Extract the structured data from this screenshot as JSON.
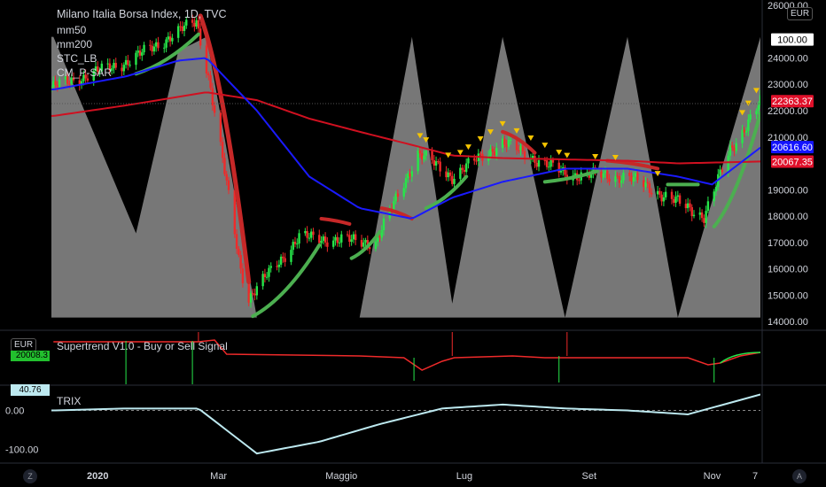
{
  "header": {
    "title": "Milano Italia Borsa Index, 1D, TVC",
    "indicators": [
      "mm50",
      "mm200",
      "STC_LB",
      "CM_P-SAR"
    ],
    "currency": "EUR"
  },
  "panels": {
    "supertrend": {
      "label": "Supertrend V1.0 - Buy or Sell Signal",
      "currency": "EUR",
      "value_badge": "20008.3"
    },
    "trix": {
      "label": "TRIX",
      "value_badge": "40.76"
    }
  },
  "price_axis": {
    "ticks": [
      "26000.00",
      "24000.00",
      "23000.00",
      "22000.00",
      "21000.00",
      "19000.00",
      "18000.00",
      "17000.00",
      "16000.00",
      "15000.00",
      "14000.00"
    ],
    "tick_values": [
      26000,
      24000,
      23000,
      22000,
      21000,
      19000,
      18000,
      17000,
      16000,
      15000,
      14000
    ],
    "badges": [
      {
        "text": "100.00",
        "value": 24700,
        "color": "#ffffff",
        "text_color": "#000000"
      },
      {
        "text": "22363.37",
        "value": 22363,
        "color": "#e0102a",
        "text_color": "#ffffff"
      },
      {
        "text": "20616.60",
        "value": 20616,
        "color": "#1414ff",
        "text_color": "#ffffff"
      },
      {
        "text": "20067.35",
        "value": 20067,
        "color": "#e0102a",
        "text_color": "#ffffff"
      }
    ]
  },
  "trix_axis": {
    "ticks": [
      "0.00",
      "-100.00"
    ],
    "tick_values": [
      0,
      -100
    ]
  },
  "time_axis": {
    "labels": [
      "2020",
      "Mar",
      "Maggio",
      "Lug",
      "Set",
      "Nov",
      "7"
    ]
  },
  "corner_buttons": {
    "left": "Z",
    "right": "A"
  },
  "colors": {
    "background": "#000000",
    "up_candle": "#26e64a",
    "down_candle": "#ef2a2a",
    "mm50": "#1a1aff",
    "mm200": "#d01020",
    "psar_green": "#4caf50",
    "psar_red": "#c62828",
    "stc_fill": "#8c8c8c",
    "signal_triangle": "#f5c400",
    "trix_line": "#bde9f0"
  },
  "chart_data": {
    "type": "line",
    "title": "Milano Italia Borsa Index, 1D, TVC",
    "x_range": [
      "2019-12-09",
      "2020-11-25"
    ],
    "ylim": [
      13700,
      26200
    ],
    "series": [
      {
        "name": "mm50",
        "x": [
          "2019-12-10",
          "2020-01-15",
          "2020-02-10",
          "2020-02-24",
          "2020-03-20",
          "2020-04-15",
          "2020-05-10",
          "2020-06-05",
          "2020-06-25",
          "2020-07-20",
          "2020-08-20",
          "2020-09-20",
          "2020-10-15",
          "2020-11-01",
          "2020-11-25"
        ],
        "values": [
          22800,
          23300,
          23900,
          24000,
          22000,
          19500,
          18300,
          17900,
          18700,
          19300,
          19800,
          19800,
          19500,
          19200,
          20600
        ]
      },
      {
        "name": "mm200",
        "x": [
          "2019-12-10",
          "2020-01-15",
          "2020-02-24",
          "2020-03-20",
          "2020-04-15",
          "2020-05-10",
          "2020-06-05",
          "2020-06-25",
          "2020-07-20",
          "2020-08-20",
          "2020-09-20",
          "2020-10-15",
          "2020-11-25"
        ],
        "values": [
          21800,
          22200,
          22700,
          22400,
          21700,
          21200,
          20700,
          20300,
          20200,
          20150,
          20100,
          20000,
          20070
        ]
      },
      {
        "name": "STC_LB",
        "x": [
          "2019-12-10",
          "2020-01-20",
          "2020-02-10",
          "2020-02-24",
          "2020-03-20",
          "2020-04-15",
          "2020-05-10",
          "2020-06-05",
          "2020-06-25",
          "2020-07-20",
          "2020-08-20",
          "2020-09-20",
          "2020-10-15",
          "2020-11-25"
        ],
        "values": [
          100,
          30,
          95,
          100,
          0,
          0,
          0,
          100,
          5,
          100,
          0,
          100,
          0,
          100
        ]
      }
    ],
    "supertrend_panel": {
      "signal_level": 20008.3
    },
    "trix_panel": {
      "ylim": [
        -130,
        60
      ],
      "last": 40.76,
      "x": [
        "2019-12-10",
        "2020-01-15",
        "2020-02-20",
        "2020-03-20",
        "2020-04-20",
        "2020-05-20",
        "2020-06-20",
        "2020-07-20",
        "2020-08-20",
        "2020-09-20",
        "2020-10-20",
        "2020-11-25"
      ],
      "values": [
        0,
        5,
        5,
        -110,
        -80,
        -35,
        5,
        15,
        5,
        0,
        -10,
        40.76
      ]
    }
  }
}
